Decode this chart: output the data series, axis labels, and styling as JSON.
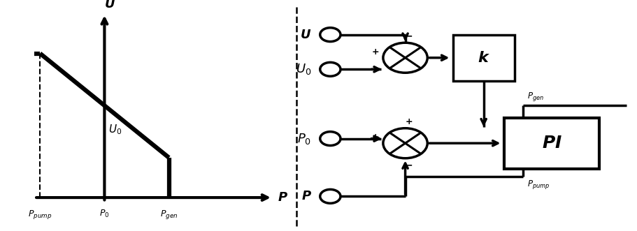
{
  "bg_color": "#ffffff",
  "line_color": "#000000",
  "lw": 2.5,
  "graph": {
    "label_U": "U",
    "label_P": "P",
    "label_U0": "$U_0$",
    "label_Ppump": "$P_{pump}$",
    "label_P0": "$P_0$",
    "label_Pgen_ax": "$P_{gen}$"
  },
  "block_diagram": {
    "U_label": "$\\boldsymbol{U}$",
    "U0_label": "$\\boldsymbol{U_0}$",
    "P0_label": "$\\boldsymbol{P_0}$",
    "P_label": "$\\boldsymbol{P}$",
    "k_label": "$\\boldsymbol{k}$",
    "PI_label": "$\\boldsymbol{PI}$",
    "Pgen_label": "$P_{gen}$",
    "Ppump_label": "$P_{pump}$"
  }
}
